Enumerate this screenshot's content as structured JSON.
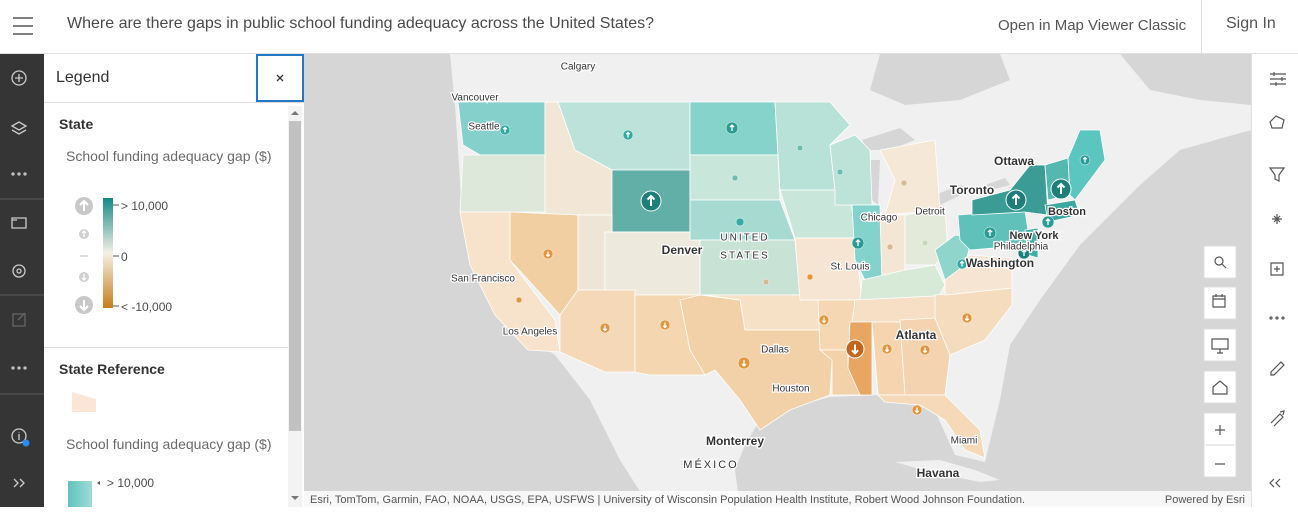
{
  "header": {
    "title": "Where are there gaps in public school funding adequacy across the United States?",
    "open_classic": "Open in Map Viewer Classic",
    "sign_in": "Sign In"
  },
  "legend": {
    "title": "Legend",
    "sections": [
      {
        "title": "State",
        "field": "School funding adequacy gap ($)",
        "labels": [
          "> 10,000",
          "0",
          "< -10,000"
        ]
      },
      {
        "title": "State Reference",
        "field": "School funding adequacy gap ($)",
        "labels": [
          "> 10,000"
        ]
      }
    ]
  },
  "map": {
    "labels": [
      "Calgary",
      "Vancouver",
      "Seattle",
      "Ottawa",
      "Toronto",
      "Detroit",
      "Chicago",
      "Boston",
      "New York",
      "Philadelphia",
      "Washington",
      "St. Louis",
      "Denver",
      "UNITED",
      "STATES",
      "San Francisco",
      "Los Angeles",
      "Dallas",
      "Houston",
      "Atlanta",
      "Miami",
      "Monterrey",
      "MÉXICO",
      "Havana"
    ],
    "attribution": "Esri, TomTom, Garmin, FAO, NOAA, USGS, EPA, USFWS | University of Wisconsin Population Health Institute, Robert Wood Johnson Foundation.",
    "powered_by": "Powered by Esri"
  }
}
